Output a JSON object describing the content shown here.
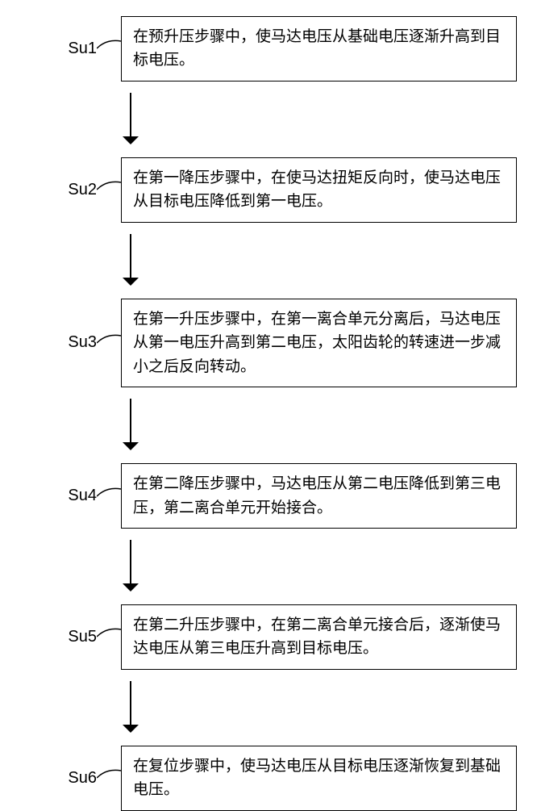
{
  "flowchart": {
    "type": "flowchart",
    "direction": "vertical",
    "background_color": "#ffffff",
    "border_color": "#000000",
    "text_color": "#000000",
    "font_size_box": 19,
    "font_size_label": 20,
    "line_height": 1.55,
    "border_width": 1.5,
    "arrow_length": 56,
    "arrow_head_size": 10,
    "connector_curve": true,
    "steps": [
      {
        "id": "Su1",
        "text": "在预升压步骤中，使马达电压从基础电压逐渐升高到目标电压。"
      },
      {
        "id": "Su2",
        "text": "在第一降压步骤中，在使马达扭矩反向时，使马达电压从目标电压降低到第一电压。"
      },
      {
        "id": "Su3",
        "text": "在第一升压步骤中，在第一离合单元分离后，马达电压从第一电压升高到第二电压，太阳齿轮的转速进一步减小之后反向转动。"
      },
      {
        "id": "Su4",
        "text": "在第二降压步骤中，马达电压从第二电压降低到第三电压，第二离合单元开始接合。"
      },
      {
        "id": "Su5",
        "text": "在第二升压步骤中，在第二离合单元接合后，逐渐使马达电压从第三电压升高到目标电压。"
      },
      {
        "id": "Su6",
        "text": "在复位步骤中，使马达电压从目标电压逐渐恢复到基础电压。"
      }
    ]
  }
}
